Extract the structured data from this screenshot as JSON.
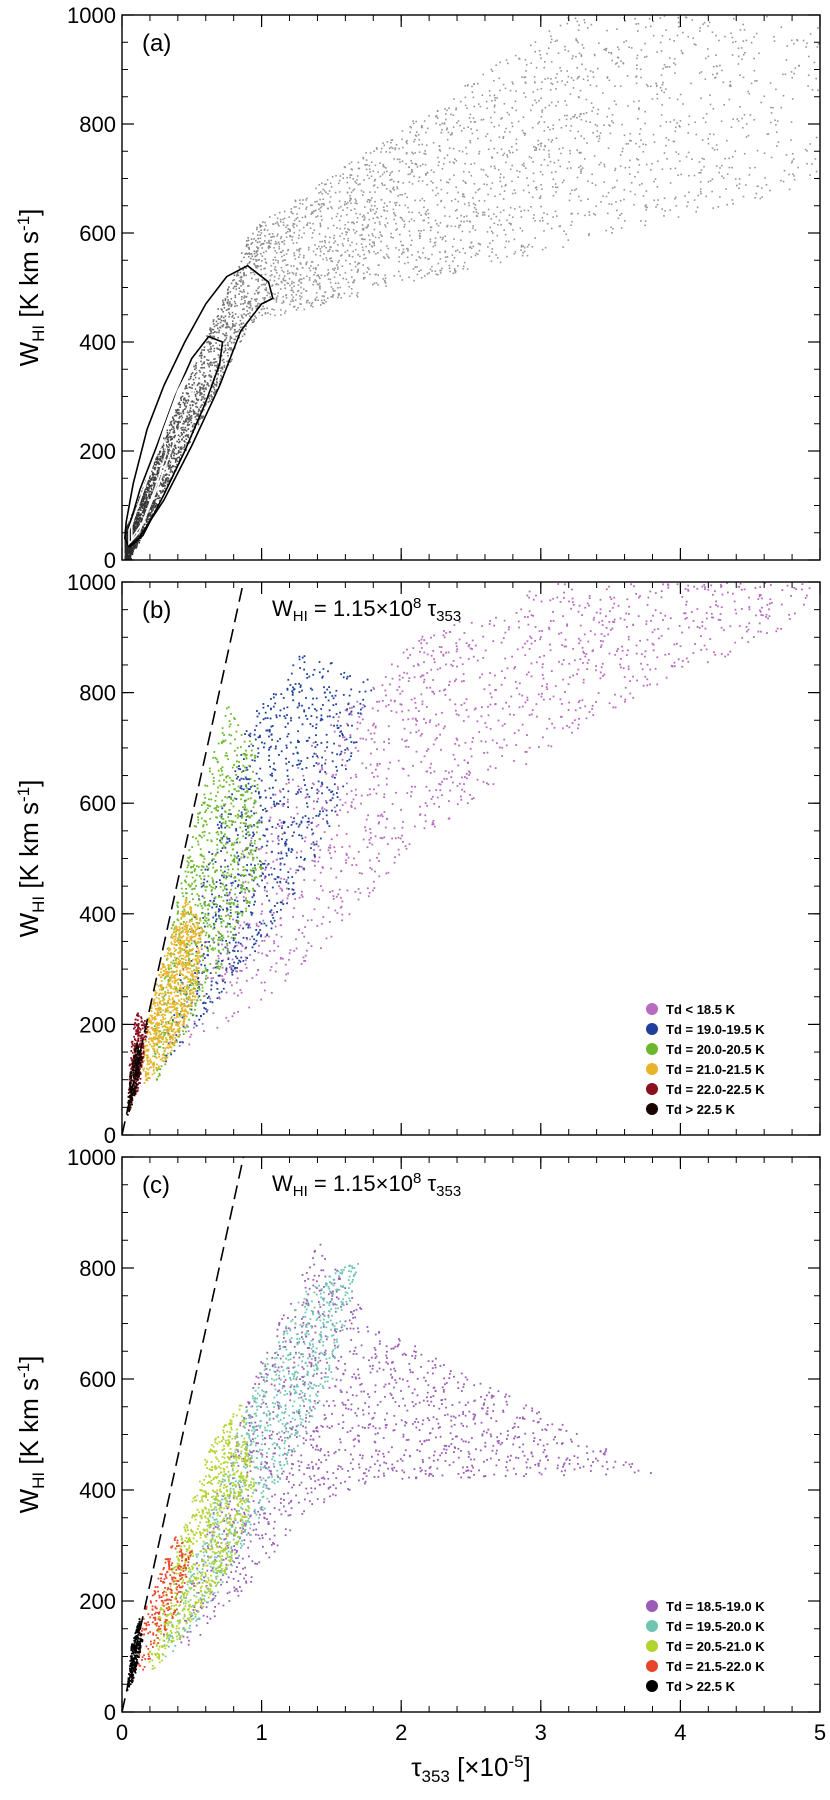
{
  "chart_data": [
    {
      "type": "scatter",
      "panel_label": "(a)",
      "ylabel": "W",
      "ylabel_sub": "HI",
      "ylabel_unit": "[K km s",
      "ylabel_unit_sup": "-1",
      "ylabel_unit_end": "]",
      "xlim": [
        0,
        5
      ],
      "ylim": [
        0,
        1000
      ],
      "xticks": [
        "0",
        "1",
        "2",
        "3",
        "4",
        "5"
      ],
      "yticks": [
        "0",
        "200",
        "400",
        "600",
        "800",
        "1000"
      ],
      "point_color": "#808080",
      "envelope": {
        "x": [
          0.02,
          0.9,
          5.0
        ],
        "y": [
          20,
          520,
          1000
        ]
      },
      "contours": [
        {
          "color": "#000000",
          "points": [
            [
              0.05,
              25
            ],
            [
              0.12,
              40
            ],
            [
              0.3,
              110
            ],
            [
              0.5,
              210
            ],
            [
              0.7,
              320
            ],
            [
              0.85,
              420
            ],
            [
              1.0,
              470
            ],
            [
              1.08,
              480
            ],
            [
              1.05,
              510
            ],
            [
              0.9,
              540
            ],
            [
              0.75,
              520
            ],
            [
              0.6,
              470
            ],
            [
              0.45,
              400
            ],
            [
              0.3,
              320
            ],
            [
              0.18,
              240
            ],
            [
              0.08,
              140
            ],
            [
              0.03,
              70
            ],
            [
              0.02,
              40
            ]
          ]
        },
        {
          "color": "#000000",
          "points": [
            [
              0.06,
              25
            ],
            [
              0.15,
              45
            ],
            [
              0.3,
              120
            ],
            [
              0.45,
              200
            ],
            [
              0.6,
              290
            ],
            [
              0.7,
              360
            ],
            [
              0.72,
              400
            ],
            [
              0.62,
              410
            ],
            [
              0.5,
              370
            ],
            [
              0.38,
              300
            ],
            [
              0.25,
              210
            ],
            [
              0.13,
              130
            ],
            [
              0.05,
              60
            ]
          ]
        },
        {
          "color": "#ffffff",
          "points": [
            [
              0.05,
              30
            ],
            [
              0.12,
              50
            ],
            [
              0.25,
              130
            ],
            [
              0.38,
              220
            ],
            [
              0.5,
              300
            ],
            [
              0.55,
              345
            ],
            [
              0.48,
              350
            ],
            [
              0.4,
              310
            ],
            [
              0.3,
              240
            ],
            [
              0.2,
              160
            ],
            [
              0.1,
              90
            ],
            [
              0.05,
              55
            ]
          ]
        },
        {
          "color": "#ffffff",
          "points": [
            [
              0.07,
              40
            ],
            [
              0.15,
              70
            ],
            [
              0.25,
              140
            ],
            [
              0.32,
              200
            ],
            [
              0.3,
              220
            ],
            [
              0.22,
              180
            ],
            [
              0.13,
              110
            ],
            [
              0.07,
              65
            ]
          ]
        }
      ]
    },
    {
      "type": "scatter",
      "panel_label": "(b)",
      "ylabel": "W",
      "ylabel_sub": "HI",
      "ylabel_unit": "[K km s",
      "ylabel_unit_sup": "-1",
      "ylabel_unit_end": "]",
      "xlim": [
        0,
        5
      ],
      "ylim": [
        0,
        1000
      ],
      "xticks": [
        "0",
        "1",
        "2",
        "3",
        "4",
        "5"
      ],
      "yticks": [
        "0",
        "200",
        "400",
        "600",
        "800",
        "1000"
      ],
      "equation": "W",
      "equation_sub": "HI",
      "equation_mid": " = 1.15×10",
      "equation_sup": "8",
      "equation_end": " τ",
      "equation_end_sub": "353",
      "line": {
        "style": "dashed",
        "x": [
          0.0,
          0.87
        ],
        "y": [
          0,
          1000
        ]
      },
      "legend": [
        {
          "label": "Td < 18.5 K",
          "color": "#b86cc0"
        },
        {
          "label": "Td = 19.0-19.5 K",
          "color": "#1f3f9a"
        },
        {
          "label": "Td = 20.0-20.5 K",
          "color": "#6cb82c"
        },
        {
          "label": "Td = 21.0-21.5 K",
          "color": "#e8b52a"
        },
        {
          "label": "Td = 22.0-22.5 K",
          "color": "#8a1020"
        },
        {
          "label": "Td > 22.5 K",
          "color": "#1a0500"
        }
      ],
      "series": [
        {
          "color": "#b86cc0",
          "points": [
            [
              0.4,
              150
            ],
            [
              1.2,
              280
            ],
            [
              2.2,
              550
            ],
            [
              3.4,
              760
            ],
            [
              4.8,
              920
            ],
            [
              5.0,
              1000
            ],
            [
              4.2,
              1000
            ],
            [
              3.0,
              1000
            ],
            [
              2.1,
              900
            ],
            [
              1.3,
              700
            ],
            [
              0.8,
              500
            ],
            [
              0.45,
              260
            ]
          ]
        },
        {
          "color": "#1f3f9a",
          "points": [
            [
              0.3,
              130
            ],
            [
              0.7,
              250
            ],
            [
              1.1,
              380
            ],
            [
              1.5,
              560
            ],
            [
              1.8,
              820
            ],
            [
              1.3,
              880
            ],
            [
              0.9,
              750
            ],
            [
              0.6,
              500
            ],
            [
              0.35,
              240
            ]
          ]
        },
        {
          "color": "#6cb82c",
          "points": [
            [
              0.22,
              90
            ],
            [
              0.55,
              230
            ],
            [
              0.8,
              350
            ],
            [
              1.0,
              480
            ],
            [
              0.95,
              700
            ],
            [
              0.75,
              780
            ],
            [
              0.55,
              600
            ],
            [
              0.35,
              380
            ],
            [
              0.2,
              180
            ]
          ]
        },
        {
          "color": "#e8b52a",
          "points": [
            [
              0.15,
              90
            ],
            [
              0.35,
              150
            ],
            [
              0.52,
              250
            ],
            [
              0.58,
              380
            ],
            [
              0.45,
              430
            ],
            [
              0.3,
              330
            ],
            [
              0.2,
              240
            ],
            [
              0.14,
              160
            ]
          ]
        },
        {
          "color": "#8a1020",
          "points": [
            [
              0.04,
              40
            ],
            [
              0.12,
              90
            ],
            [
              0.18,
              200
            ],
            [
              0.1,
              230
            ],
            [
              0.05,
              150
            ]
          ]
        },
        {
          "color": "#1a0500",
          "points": [
            [
              0.03,
              35
            ],
            [
              0.08,
              60
            ],
            [
              0.14,
              140
            ],
            [
              0.1,
              170
            ],
            [
              0.05,
              110
            ]
          ]
        }
      ]
    },
    {
      "type": "scatter",
      "panel_label": "(c)",
      "ylabel": "W",
      "ylabel_sub": "HI",
      "ylabel_unit": "[K km s",
      "ylabel_unit_sup": "-1",
      "ylabel_unit_end": "]",
      "xlabel": "τ",
      "xlabel_sub": "353",
      "xlabel_unit": " [×10",
      "xlabel_unit_sup": "-5",
      "xlabel_unit_end": "]",
      "xlim": [
        0,
        5
      ],
      "ylim": [
        0,
        1000
      ],
      "xticks": [
        "0",
        "1",
        "2",
        "3",
        "4",
        "5"
      ],
      "yticks": [
        "0",
        "200",
        "400",
        "600",
        "800",
        "1000"
      ],
      "equation": "W",
      "equation_sub": "HI",
      "equation_mid": " = 1.15×10",
      "equation_sup": "8",
      "equation_end": " τ",
      "equation_end_sub": "353",
      "line": {
        "style": "dashed",
        "x": [
          0.0,
          0.87
        ],
        "y": [
          0,
          1000
        ]
      },
      "legend": [
        {
          "label": "Td = 18.5-19.0 K",
          "color": "#9a5cb4"
        },
        {
          "label": "Td = 19.5-20.0 K",
          "color": "#6fc6b0"
        },
        {
          "label": "Td = 20.5-21.0 K",
          "color": "#b2d22e"
        },
        {
          "label": "Td = 21.5-22.0 K",
          "color": "#e8452a"
        },
        {
          "label": "Td > 22.5 K",
          "color": "#000000"
        }
      ],
      "series": [
        {
          "color": "#9a5cb4",
          "points": [
            [
              0.4,
              100
            ],
            [
              0.9,
              230
            ],
            [
              1.3,
              360
            ],
            [
              1.8,
              420
            ],
            [
              3.8,
              430
            ],
            [
              3.0,
              540
            ],
            [
              1.8,
              700
            ],
            [
              1.4,
              850
            ],
            [
              1.0,
              640
            ],
            [
              0.7,
              420
            ],
            [
              0.45,
              200
            ]
          ]
        },
        {
          "color": "#6fc6b0",
          "points": [
            [
              0.3,
              90
            ],
            [
              0.7,
              220
            ],
            [
              1.1,
              400
            ],
            [
              1.5,
              600
            ],
            [
              1.7,
              820
            ],
            [
              1.3,
              760
            ],
            [
              0.95,
              600
            ],
            [
              0.7,
              420
            ],
            [
              0.45,
              230
            ],
            [
              0.28,
              130
            ]
          ]
        },
        {
          "color": "#b2d22e",
          "points": [
            [
              0.2,
              70
            ],
            [
              0.5,
              160
            ],
            [
              0.8,
              280
            ],
            [
              0.95,
              400
            ],
            [
              0.85,
              560
            ],
            [
              0.62,
              480
            ],
            [
              0.42,
              320
            ],
            [
              0.26,
              180
            ],
            [
              0.18,
              110
            ]
          ]
        },
        {
          "color": "#e8452a",
          "points": [
            [
              0.1,
              60
            ],
            [
              0.25,
              120
            ],
            [
              0.42,
              200
            ],
            [
              0.5,
              290
            ],
            [
              0.38,
              320
            ],
            [
              0.24,
              240
            ],
            [
              0.12,
              160
            ]
          ]
        },
        {
          "color": "#000000",
          "points": [
            [
              0.03,
              40
            ],
            [
              0.08,
              60
            ],
            [
              0.14,
              130
            ],
            [
              0.12,
              170
            ],
            [
              0.06,
              120
            ]
          ]
        }
      ]
    }
  ]
}
